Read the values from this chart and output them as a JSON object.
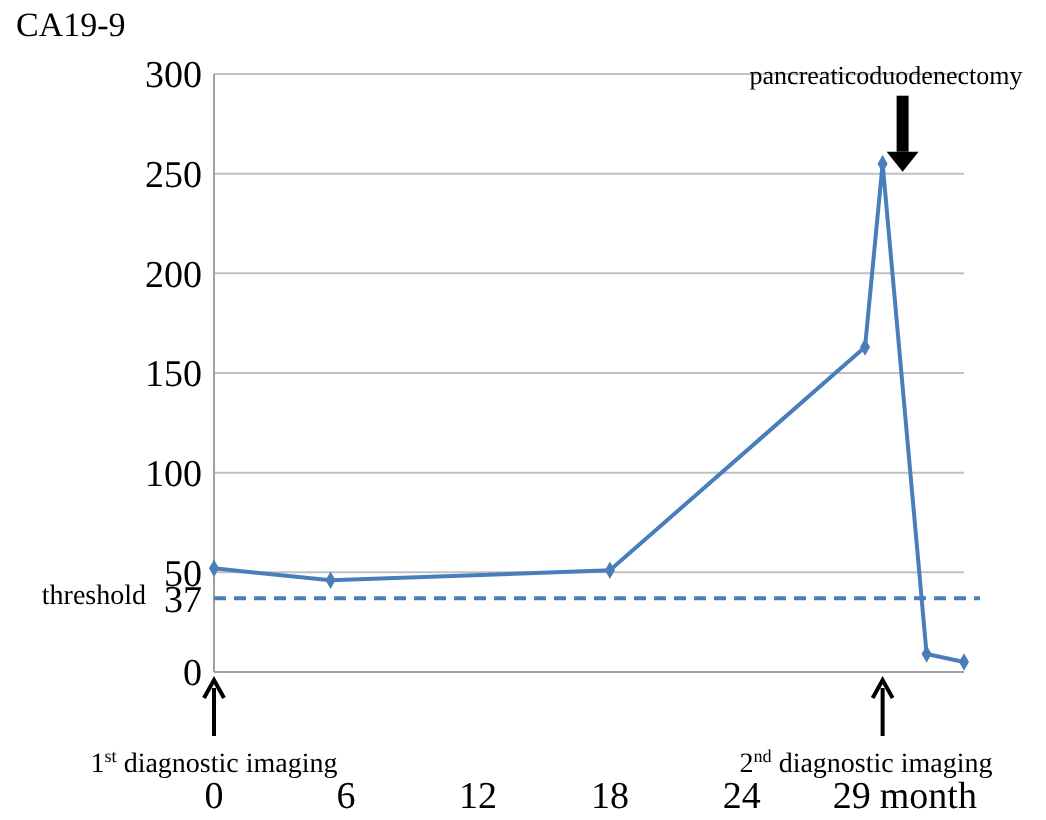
{
  "chart_data": {
    "type": "line",
    "ylabel": "CA19-9",
    "xlabel": "month",
    "x": [
      0,
      5.3,
      18,
      29.6,
      30.4,
      32.4,
      34.1
    ],
    "series": [
      {
        "color": "#4a7ebb",
        "values": [
          52,
          46,
          51,
          163,
          255,
          9,
          5
        ]
      }
    ],
    "xlim": [
      0,
      34.1
    ],
    "xticks": [
      0,
      6,
      12,
      18,
      24,
      29
    ],
    "ylim": [
      0,
      300
    ],
    "yticks": [
      0,
      37,
      50,
      100,
      150,
      200,
      250,
      300
    ],
    "grid": "y",
    "marker": "diamond",
    "line_style": "solid",
    "ref_lines": [
      {
        "axis": "y",
        "value": 37,
        "label": "threshold",
        "color": "#4a7ebb",
        "line_style": "dashed"
      }
    ],
    "annotations": [
      "pancreaticoduodenectomy",
      "1$^{st}$ diagnostic imaging",
      "2$^{nd}$ diagnostic imaging"
    ]
  }
}
